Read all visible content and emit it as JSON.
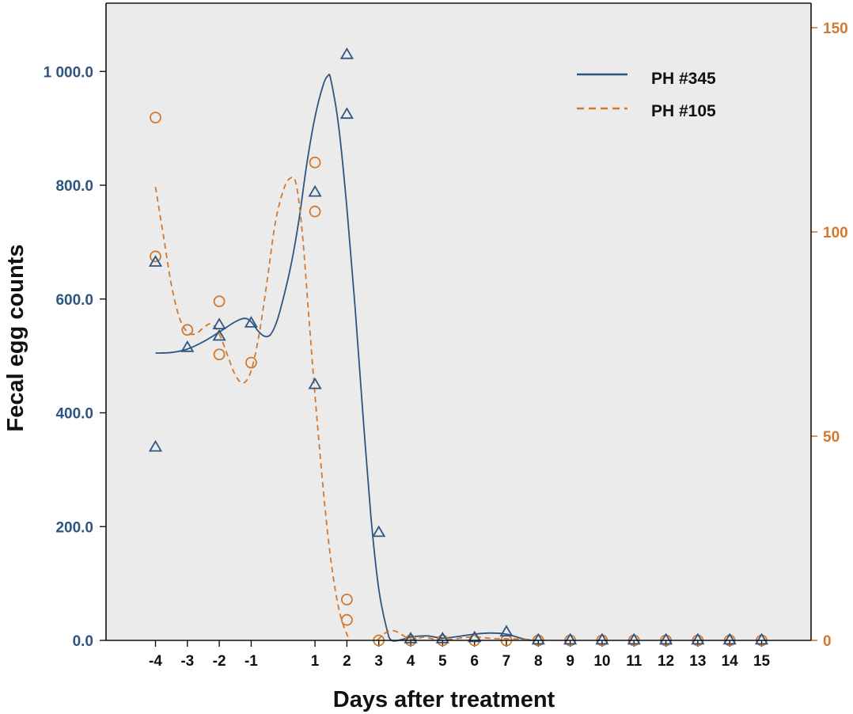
{
  "chart_data": {
    "type": "scatter",
    "title": "",
    "xlabel": "Days after treatment",
    "ylabel": "Fecal egg counts",
    "xlim": [
      -5.55,
      16.55
    ],
    "ylim_left": [
      0,
      1120
    ],
    "ylim_right": [
      0,
      156
    ],
    "x_ticks": [
      -4,
      -3,
      -2,
      -1,
      1,
      2,
      3,
      4,
      5,
      6,
      7,
      8,
      9,
      10,
      11,
      12,
      13,
      14,
      15
    ],
    "x_tick_labels": [
      "-4",
      "-3",
      "-2",
      "-1",
      "1",
      "2",
      "3",
      "4",
      "5",
      "6",
      "7",
      "8",
      "9",
      "10",
      "11",
      "12",
      "13",
      "14",
      "15"
    ],
    "y_left_ticks": [
      0,
      200,
      400,
      600,
      800,
      1000
    ],
    "y_left_tick_labels": [
      "0.0",
      "200.0",
      "400.0",
      "600.0",
      "800.0",
      "1 000.0"
    ],
    "y_right_ticks": [
      0,
      50,
      100,
      150
    ],
    "y_right_tick_labels": [
      "0",
      "50",
      "100",
      "150"
    ],
    "grid": false,
    "legend_position": "top-right",
    "colors": {
      "series1": "#2e5581",
      "series2": "#d2782f",
      "plot_bg": "#ebebeb",
      "frame": "#111111"
    },
    "series": [
      {
        "name": "PH #345",
        "axis": "left",
        "marker": "triangle",
        "line_style": "solid",
        "points": [
          [
            -4,
            665
          ],
          [
            -4,
            340
          ],
          [
            -3,
            515
          ],
          [
            -2,
            555
          ],
          [
            -2,
            535
          ],
          [
            -1,
            558
          ],
          [
            1,
            788
          ],
          [
            1,
            450
          ],
          [
            2,
            1030
          ],
          [
            2,
            925
          ],
          [
            3,
            190
          ],
          [
            4,
            3
          ],
          [
            5,
            3
          ],
          [
            6,
            5
          ],
          [
            7,
            15
          ],
          [
            8,
            1
          ],
          [
            9,
            1
          ],
          [
            10,
            1
          ],
          [
            11,
            1
          ],
          [
            12,
            1
          ],
          [
            13,
            1
          ],
          [
            14,
            1
          ],
          [
            15,
            1
          ]
        ],
        "fit_curve": [
          [
            -4,
            505
          ],
          [
            -3.5,
            506
          ],
          [
            -3,
            512
          ],
          [
            -2.5,
            525
          ],
          [
            -2,
            542
          ],
          [
            -1.5,
            560
          ],
          [
            -1.2,
            566
          ],
          [
            -1,
            560
          ],
          [
            -0.8,
            545
          ],
          [
            -0.6,
            535
          ],
          [
            -0.4,
            537
          ],
          [
            -0.2,
            560
          ],
          [
            0,
            600
          ],
          [
            0.25,
            660
          ],
          [
            0.5,
            740
          ],
          [
            0.75,
            840
          ],
          [
            1,
            920
          ],
          [
            1.25,
            975
          ],
          [
            1.4,
            992
          ],
          [
            1.5,
            985
          ],
          [
            1.75,
            900
          ],
          [
            2,
            760
          ],
          [
            2.25,
            590
          ],
          [
            2.5,
            400
          ],
          [
            2.75,
            220
          ],
          [
            3,
            90
          ],
          [
            3.25,
            20
          ],
          [
            3.4,
            0
          ],
          [
            3.75,
            2
          ],
          [
            4,
            6
          ],
          [
            4.5,
            8
          ],
          [
            5,
            4
          ],
          [
            5.5,
            7
          ],
          [
            6,
            11
          ],
          [
            6.5,
            13
          ],
          [
            7,
            11
          ],
          [
            7.5,
            3
          ],
          [
            7.8,
            0
          ]
        ]
      },
      {
        "name": "PH #105",
        "axis": "right",
        "marker": "circle",
        "line_style": "dashed",
        "points": [
          [
            -4,
            128
          ],
          [
            -4,
            94
          ],
          [
            -3,
            76
          ],
          [
            -2,
            83
          ],
          [
            -2,
            70
          ],
          [
            -1,
            68
          ],
          [
            1,
            117
          ],
          [
            1,
            105
          ],
          [
            2,
            10
          ],
          [
            2,
            5
          ],
          [
            3,
            0
          ],
          [
            4,
            0
          ],
          [
            5,
            0
          ],
          [
            6,
            0
          ],
          [
            7,
            0
          ],
          [
            8,
            0
          ],
          [
            9,
            0
          ],
          [
            10,
            0
          ],
          [
            11,
            0
          ],
          [
            12,
            0
          ],
          [
            13,
            0
          ],
          [
            14,
            0
          ],
          [
            15,
            0
          ]
        ],
        "fit_curve": [
          [
            -4,
            111
          ],
          [
            -3.75,
            99
          ],
          [
            -3.5,
            87
          ],
          [
            -3.25,
            79
          ],
          [
            -3,
            75.5
          ],
          [
            -2.75,
            75
          ],
          [
            -2.5,
            76.5
          ],
          [
            -2.25,
            77.5
          ],
          [
            -2,
            75
          ],
          [
            -1.75,
            70
          ],
          [
            -1.5,
            65
          ],
          [
            -1.25,
            63
          ],
          [
            -1,
            66
          ],
          [
            -0.75,
            75
          ],
          [
            -0.5,
            88
          ],
          [
            -0.25,
            102
          ],
          [
            0,
            110
          ],
          [
            0.2,
            113
          ],
          [
            0.4,
            112
          ],
          [
            0.6,
            100
          ],
          [
            0.8,
            80
          ],
          [
            1,
            60
          ],
          [
            1.2,
            42
          ],
          [
            1.4,
            26
          ],
          [
            1.6,
            14
          ],
          [
            1.8,
            6
          ],
          [
            2,
            1.5
          ],
          [
            2.1,
            0
          ]
        ],
        "fit_curve_tail": [
          [
            2.95,
            0
          ],
          [
            3.2,
            1.8
          ],
          [
            3.4,
            2.4
          ],
          [
            3.6,
            2
          ],
          [
            3.85,
            0.8
          ],
          [
            4.1,
            0.2
          ],
          [
            4.4,
            0.8
          ],
          [
            4.8,
            0.2
          ],
          [
            5.2,
            0.2
          ],
          [
            5.6,
            0.6
          ],
          [
            6.0,
            0.9
          ],
          [
            6.5,
            0.5
          ],
          [
            7,
            0.4
          ],
          [
            7.5,
            0.3
          ],
          [
            8,
            0
          ]
        ]
      }
    ]
  }
}
